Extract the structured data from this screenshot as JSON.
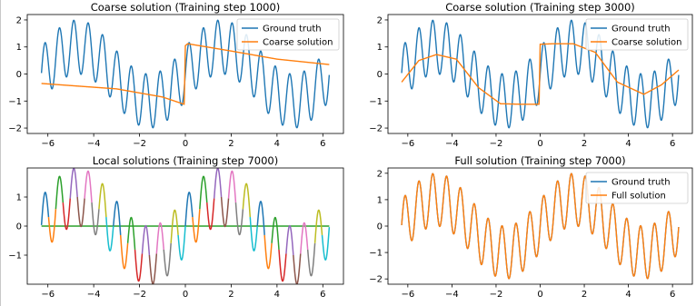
{
  "colors": {
    "ground_truth": "#1f77b4",
    "coarse": "#ff7f0e",
    "axis": "#000000",
    "legend_border": "#cccccc"
  },
  "chart_data": [
    {
      "type": "line",
      "title": "Coarse solution (Training step 1000)",
      "xlim": [
        -6.9,
        6.9
      ],
      "ylim": [
        -2.2,
        2.2
      ],
      "xticks": [
        -6,
        -4,
        -2,
        0,
        2,
        4,
        6
      ],
      "yticks": [
        -2,
        -1,
        0,
        1,
        2
      ],
      "grid": false,
      "legend": {
        "placement": "top-right",
        "entries": [
          "Ground truth",
          "Coarse solution"
        ]
      },
      "series": [
        {
          "name": "Ground truth",
          "role": "truth",
          "function": "sin(x) + sin(10x), x in [-6.28, 6.28]"
        },
        {
          "name": "Coarse solution",
          "role": "coarse",
          "x": [
            -6.28,
            -3.0,
            -1.0,
            -0.05,
            0.0,
            0.1,
            2.0,
            4.0,
            6.28
          ],
          "y": [
            -0.35,
            -0.55,
            -0.85,
            -1.12,
            1.05,
            1.12,
            0.85,
            0.55,
            0.35
          ]
        }
      ]
    },
    {
      "type": "line",
      "title": "Coarse solution (Training step 3000)",
      "xlim": [
        -6.9,
        6.9
      ],
      "ylim": [
        -2.2,
        2.2
      ],
      "xticks": [
        -6,
        -4,
        -2,
        0,
        2,
        4,
        6
      ],
      "yticks": [
        -2,
        -1,
        0,
        1,
        2
      ],
      "grid": false,
      "legend": {
        "placement": "top-right",
        "entries": [
          "Ground truth",
          "Coarse solution"
        ]
      },
      "series": [
        {
          "name": "Ground truth",
          "role": "truth",
          "function": "sin(x) + sin(10x), x in [-6.28, 6.28]"
        },
        {
          "name": "Coarse solution",
          "role": "coarse",
          "x": [
            -6.28,
            -5.5,
            -4.7,
            -3.8,
            -2.8,
            -1.8,
            -0.8,
            -0.05,
            0.0,
            0.6,
            1.5,
            2.5,
            3.5,
            4.7,
            5.5,
            6.28
          ],
          "y": [
            -0.3,
            0.5,
            0.72,
            0.55,
            -0.5,
            -1.1,
            -1.12,
            -1.12,
            1.1,
            1.12,
            1.12,
            0.8,
            -0.3,
            -0.75,
            -0.4,
            0.15
          ]
        }
      ]
    },
    {
      "type": "line",
      "title": "Local solutions (Training step 7000)",
      "xlim": [
        -6.9,
        6.9
      ],
      "ylim": [
        -2.0,
        2.0
      ],
      "xticks": [
        -6,
        -4,
        -2,
        0,
        2,
        4,
        6
      ],
      "yticks": [
        -1,
        0,
        1
      ],
      "grid": false,
      "legend": null,
      "series_note": "one local component per half-oscillation of sin(10x), colored with the tab10 cycle",
      "palette": [
        "#1f77b4",
        "#ff7f0e",
        "#2ca02c",
        "#d62728",
        "#9467bd",
        "#8c564b",
        "#e377c2",
        "#7f7f7f",
        "#bcbd22",
        "#17becf"
      ]
    },
    {
      "type": "line",
      "title": "Full solution (Training step 7000)",
      "xlim": [
        -6.9,
        6.9
      ],
      "ylim": [
        -2.2,
        2.2
      ],
      "xticks": [
        -6,
        -4,
        -2,
        0,
        2,
        4,
        6
      ],
      "yticks": [
        -2,
        -1,
        0,
        1,
        2
      ],
      "grid": false,
      "legend": {
        "placement": "top-right",
        "entries": [
          "Ground truth",
          "Full solution"
        ]
      },
      "series": [
        {
          "name": "Ground truth",
          "role": "truth",
          "function": "sin(x) + sin(10x), x in [-6.28, 6.28]"
        },
        {
          "name": "Full solution",
          "role": "coarse",
          "function": "sin(x) + sin(10x), x in [-6.28, 6.28]"
        }
      ]
    }
  ]
}
